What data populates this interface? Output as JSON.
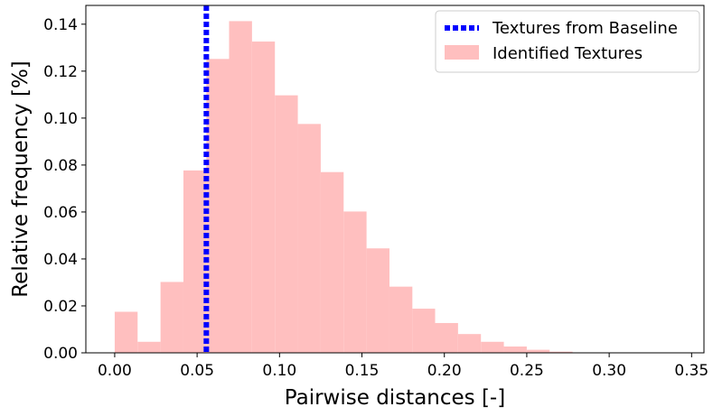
{
  "chart_data": {
    "type": "bar",
    "title": "",
    "xlabel": "Pairwise distances [-]",
    "ylabel": "Relative frequency [%]",
    "xlim": [
      -0.0175,
      0.3575
    ],
    "ylim": [
      0,
      0.148
    ],
    "xticks": [
      0.0,
      0.05,
      0.1,
      0.15,
      0.2,
      0.25,
      0.3,
      0.35
    ],
    "xtick_labels": [
      "0.00",
      "0.05",
      "0.10",
      "0.15",
      "0.20",
      "0.25",
      "0.30",
      "0.35"
    ],
    "yticks": [
      0.0,
      0.02,
      0.04,
      0.06,
      0.08,
      0.1,
      0.12,
      0.14
    ],
    "ytick_labels": [
      "0.00",
      "0.02",
      "0.04",
      "0.06",
      "0.08",
      "0.10",
      "0.12",
      "0.14"
    ],
    "grid": false,
    "legend_position": "top-right",
    "bin_edges": [
      0.0,
      0.0139,
      0.0278,
      0.0417,
      0.0556,
      0.0694,
      0.0833,
      0.0972,
      0.1111,
      0.125,
      0.1389,
      0.1528,
      0.1667,
      0.1806,
      0.1944,
      0.2083,
      0.2222,
      0.2361,
      0.25,
      0.2639,
      0.2778
    ],
    "series": [
      {
        "name": "Identified Textures",
        "type": "histogram",
        "color": "#ffbfbf",
        "values": [
          0.0175,
          0.0047,
          0.0302,
          0.0777,
          0.1252,
          0.1413,
          0.1326,
          0.1097,
          0.0975,
          0.077,
          0.0602,
          0.0445,
          0.0282,
          0.0188,
          0.0127,
          0.008,
          0.0047,
          0.0027,
          0.0013,
          0.0005
        ]
      },
      {
        "name": "Textures from Baseline",
        "type": "vline",
        "color": "#0000ff",
        "x": 0.0556
      }
    ]
  }
}
